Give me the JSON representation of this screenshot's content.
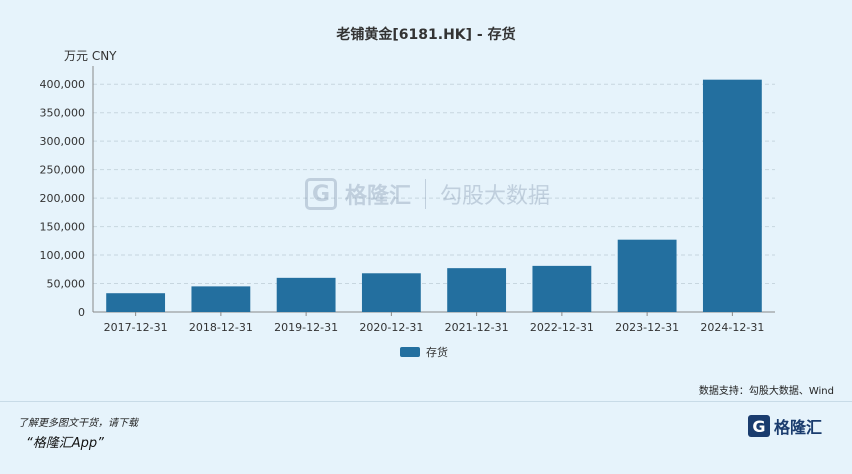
{
  "header": {
    "title": "老铺黄金[6181.HK] - 存货",
    "unit": "万元  CNY"
  },
  "watermark": {
    "brand": "格隆汇",
    "data_brand": "勾股大数据"
  },
  "footer": {
    "source": "数据支持：勾股大数据、Wind",
    "promo_line1": "了解更多图文干货，请下载",
    "promo_line2": "“格隆汇App”",
    "brand_glyph": "G",
    "brand_name": "格隆汇"
  },
  "colors": {
    "bar": "#236f9f",
    "background": "#e6f3fb",
    "grid": "#c7d6df",
    "axis": "#888888",
    "text": "#333333"
  },
  "chart_data": {
    "type": "bar",
    "title": "老铺黄金[6181.HK] - 存货",
    "ylabel": "万元  CNY",
    "categories": [
      "2017-12-31",
      "2018-12-31",
      "2019-12-31",
      "2020-12-31",
      "2021-12-31",
      "2022-12-31",
      "2023-12-31",
      "2024-12-31"
    ],
    "series": [
      {
        "name": "存货",
        "values": [
          33000,
          45000,
          60000,
          68000,
          77000,
          81000,
          127000,
          408000
        ]
      }
    ],
    "ylim": [
      0,
      425000
    ],
    "yticks": [
      0,
      50000,
      100000,
      150000,
      200000,
      250000,
      300000,
      350000,
      400000
    ],
    "ytick_labels": [
      "0",
      "50,000",
      "100,000",
      "150,000",
      "200,000",
      "250,000",
      "300,000",
      "350,000",
      "400,000"
    ],
    "grid": true,
    "legend": "bottom-center"
  }
}
